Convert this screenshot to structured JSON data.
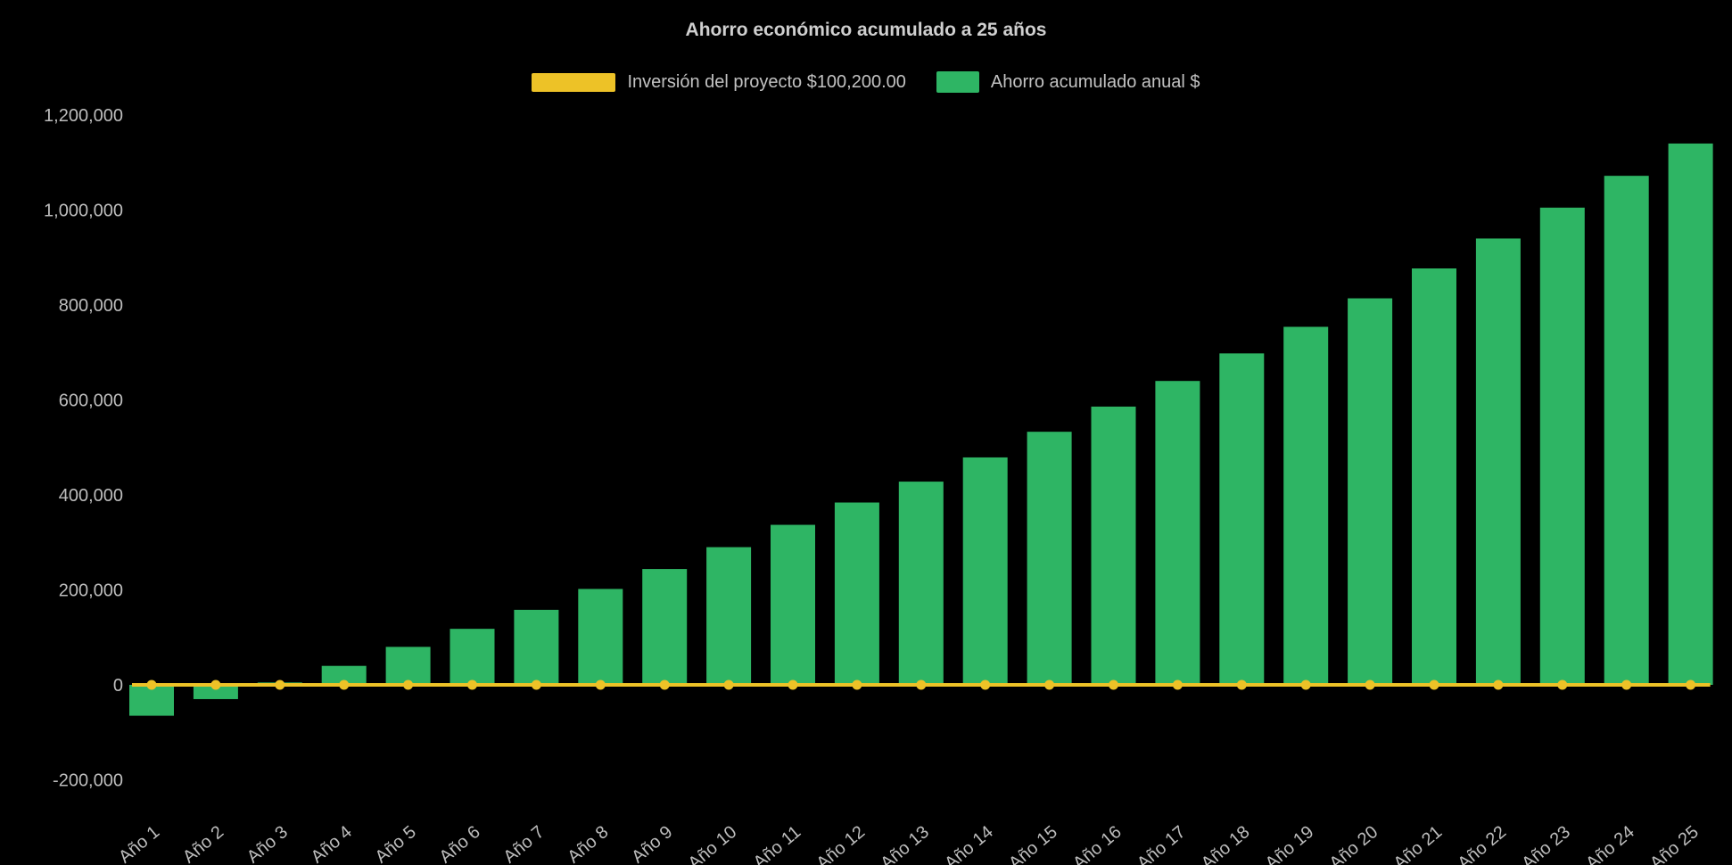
{
  "colors": {
    "background": "#000000",
    "bar_green": "#2eb564",
    "line_gold": "#edc227",
    "text": "#bdbdbd",
    "title_text": "#cfcfcf"
  },
  "chart_data": {
    "type": "bar",
    "title": "Ahorro económico acumulado a 25 años",
    "legend_position": "top",
    "grid": false,
    "xlabel": "",
    "ylabel": "",
    "ylim": [
      -200000,
      1200000
    ],
    "categories": [
      "Año 1",
      "Año 2",
      "Año 3",
      "Año 4",
      "Año 5",
      "Año 6",
      "Año 7",
      "Año 8",
      "Año 9",
      "Año 10",
      "Año 11",
      "Año 12",
      "Año 13",
      "Año 14",
      "Año 15",
      "Año 16",
      "Año 17",
      "Año 18",
      "Año 19",
      "Año 20",
      "Año 21",
      "Año 22",
      "Año 23",
      "Año 24",
      "Año 25"
    ],
    "y_ticks": [
      {
        "value": -200000,
        "label": "-200,000"
      },
      {
        "value": 0,
        "label": "0"
      },
      {
        "value": 200000,
        "label": "200,000"
      },
      {
        "value": 400000,
        "label": "400,000"
      },
      {
        "value": 600000,
        "label": "600,000"
      },
      {
        "value": 800000,
        "label": "800,000"
      },
      {
        "value": 1000000,
        "label": "1,000,000"
      },
      {
        "value": 1200000,
        "label": "1,200,000"
      }
    ],
    "series": [
      {
        "name": "Inversión del proyecto $100,200.00",
        "type": "line",
        "color": "#edc227",
        "marker": "circle",
        "investment_amount": 100200,
        "constant_value": 0
      },
      {
        "name": "Ahorro acumulado anual $",
        "type": "bar",
        "color": "#2eb564",
        "values": [
          -65000,
          -30000,
          5000,
          40000,
          80000,
          118000,
          158000,
          202000,
          244000,
          290000,
          337000,
          384000,
          428000,
          479000,
          533000,
          586000,
          640000,
          698000,
          754000,
          814000,
          877000,
          940000,
          1005000,
          1072000,
          1140000
        ]
      }
    ]
  }
}
